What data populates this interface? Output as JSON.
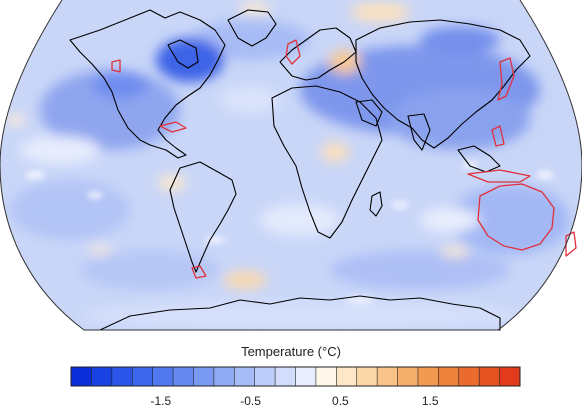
{
  "map": {
    "projection": "Robinson",
    "field": "surface temperature anomaly",
    "highlighted_coastline_color": "#e0303a",
    "coastline_color": "#000000",
    "dominant_anomaly": "cool (blue) over most of the globe; warm patches over central Africa, Central Asia, North Atlantic/Arctic and Southern Ocean"
  },
  "colorbar": {
    "title": "Temperature (°C)",
    "min": -2.5,
    "max": 2.5,
    "step": 0.25,
    "ticks": [
      "-1.5",
      "-0.5",
      "0.5",
      "1.5"
    ],
    "tick_values": [
      -1.5,
      -0.5,
      0.5,
      1.5
    ],
    "colors": [
      "#0a2fd8",
      "#1a42e2",
      "#2a55e8",
      "#3c66ec",
      "#5078ef",
      "#6589f1",
      "#7a9af3",
      "#90abf5",
      "#a7bcf7",
      "#bccdf9",
      "#d2ddfb",
      "#e8eefd",
      "#fff7ea",
      "#fde7c8",
      "#fbd6a8",
      "#f8c389",
      "#f5af6c",
      "#f29a52",
      "#ee833d",
      "#ea6b2d",
      "#e65323",
      "#e23a1c"
    ]
  }
}
